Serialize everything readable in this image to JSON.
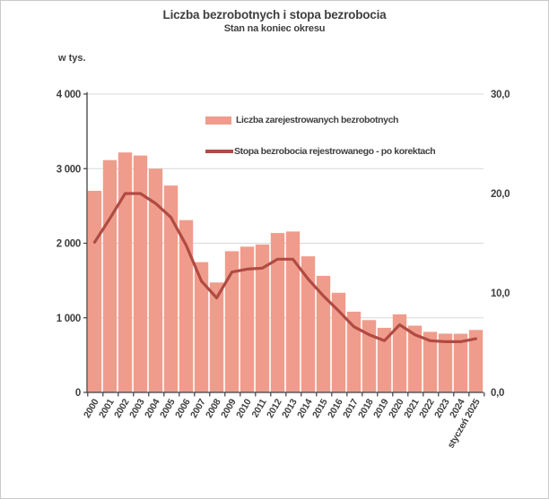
{
  "page": {
    "background": "#ffffff",
    "border_color": "#c9c9c9",
    "text_color": "#3f3f3f"
  },
  "chart": {
    "title": "Liczba bezrobotnych i stopa bezrobocia",
    "subtitle": "Stan na koniec okresu",
    "y_left_unit_label": "w tys.",
    "legend": [
      {
        "swatch": "bar",
        "label": "Liczba zarejestrowanych bezrobotnych"
      },
      {
        "swatch": "line",
        "label": "Stopa bezrobocia rejestrowanego - po korektach"
      }
    ]
  },
  "chart_data": {
    "type": "bar+line",
    "title": "Liczba bezrobotnych i stopa bezrobocia",
    "subtitle": "Stan na koniec okresu",
    "categories": [
      "2000",
      "2001",
      "2002",
      "2003",
      "2004",
      "2005",
      "2006",
      "2007",
      "2008",
      "2009",
      "2010",
      "2011",
      "2012",
      "2013",
      "2014",
      "2015",
      "2016",
      "2017",
      "2018",
      "2019",
      "2020",
      "2021",
      "2022",
      "2023",
      "2024",
      "styczeń 2025"
    ],
    "series": [
      {
        "name": "Liczba zarejestrowanych bezrobotnych",
        "type": "bar",
        "axis": "left",
        "unit": "tys.",
        "color": "#f09c8c",
        "values": [
          2702.6,
          3115.1,
          3217.0,
          3175.7,
          2999.6,
          2773.0,
          2309.4,
          1746.6,
          1473.8,
          1892.7,
          1954.7,
          1982.7,
          2136.8,
          2157.9,
          1825.2,
          1563.3,
          1335.2,
          1081.7,
          968.9,
          866.4,
          1046.4,
          895.2,
          812.3,
          788.2,
          786.6,
          837.1
        ]
      },
      {
        "name": "Stopa bezrobocia rejestrowanego - po korektach",
        "type": "line",
        "axis": "right",
        "unit": "%",
        "color": "#b04b43",
        "values": [
          15.1,
          17.5,
          20.0,
          20.0,
          19.0,
          17.6,
          14.8,
          11.2,
          9.5,
          12.1,
          12.4,
          12.5,
          13.4,
          13.4,
          11.4,
          9.7,
          8.2,
          6.6,
          5.8,
          5.2,
          6.8,
          5.8,
          5.2,
          5.1,
          5.1,
          5.4
        ]
      }
    ],
    "left_axis": {
      "label": "w tys.",
      "min": 0,
      "max": 4000,
      "ticks": [
        {
          "value": 0,
          "label": "0"
        },
        {
          "value": 1000,
          "label": "1 000"
        },
        {
          "value": 2000,
          "label": "2 000"
        },
        {
          "value": 3000,
          "label": "3 000"
        },
        {
          "value": 4000,
          "label": "4 000"
        }
      ]
    },
    "right_axis": {
      "min": 0,
      "max": 30,
      "ticks": [
        {
          "value": 0,
          "label": "0,0"
        },
        {
          "value": 10,
          "label": "10,0"
        },
        {
          "value": 20,
          "label": "20,0"
        },
        {
          "value": 30,
          "label": "30,0"
        }
      ]
    },
    "grid": true,
    "legend_position": "top-inside",
    "colors": {
      "bar": "#f09c8c",
      "line": "#b04b43",
      "grid": "#d9d9d9",
      "axis": "#3f3f3f",
      "text": "#3f3f3f"
    }
  }
}
